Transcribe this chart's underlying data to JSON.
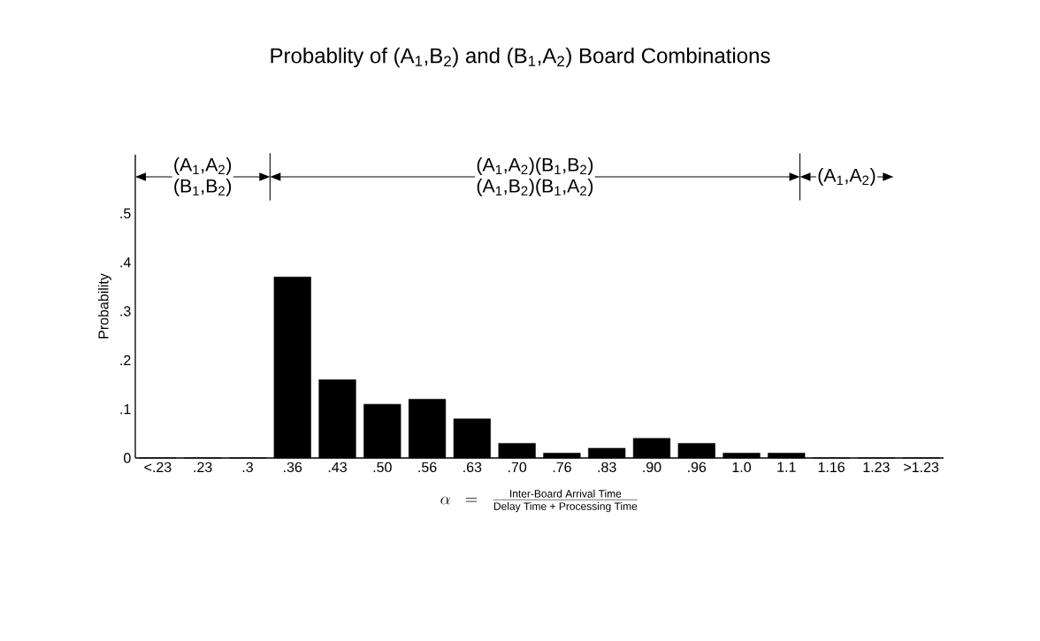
{
  "chart_data": {
    "type": "bar",
    "title": "Probablity of (A$_{1}$,B$_{2}$) and (B$_{1}$,A$_{2}$) Board Combinations",
    "xlabel": "\\alpha\\;\\;=\\;\\;\\frac{\\mbox{\\small Inter-Board Arrival Time}}{\\mbox{\\small Delay Time + Processing Time}}",
    "ylabel": "Probability",
    "categories": [
      "<.23",
      ".23",
      ".3",
      ".36",
      ".43",
      ".50",
      ".56",
      ".63",
      ".70",
      ".76",
      ".83",
      ".90",
      ".96",
      "1.0",
      "1.1",
      "1.16",
      "1.23",
      ">1.23"
    ],
    "values": [
      0,
      0,
      0,
      0.37,
      0.16,
      0.11,
      0.12,
      0.08,
      0.03,
      0.01,
      0.02,
      0.04,
      0.03,
      0.01,
      0.01,
      0,
      0,
      0
    ],
    "color": "#000000",
    "ylim": [
      0,
      0.62
    ],
    "yticks": [
      0,
      {
        "value": 0.1,
        "label": ".1"
      },
      {
        "value": 0.2,
        "label": ".2"
      },
      {
        "value": 0.3,
        "label": ".3"
      },
      {
        "value": 0.4,
        "label": ".4"
      },
      {
        "value": 0.5,
        "label": ".5"
      }
    ],
    "annotations": [
      "(A$_{1}$,A$_{2}$)",
      "(B$_{1}$,B$_{2}$)",
      "(A$_{1}$,A$_{2}$)(B$_{1}$,B$_{2}$)",
      "(A$_{1}$,B$_{2}$)(B$_{1}$,A$_{2}$)",
      "(A$_{1}$,A$_{2}$)"
    ],
    "grid": false
  }
}
